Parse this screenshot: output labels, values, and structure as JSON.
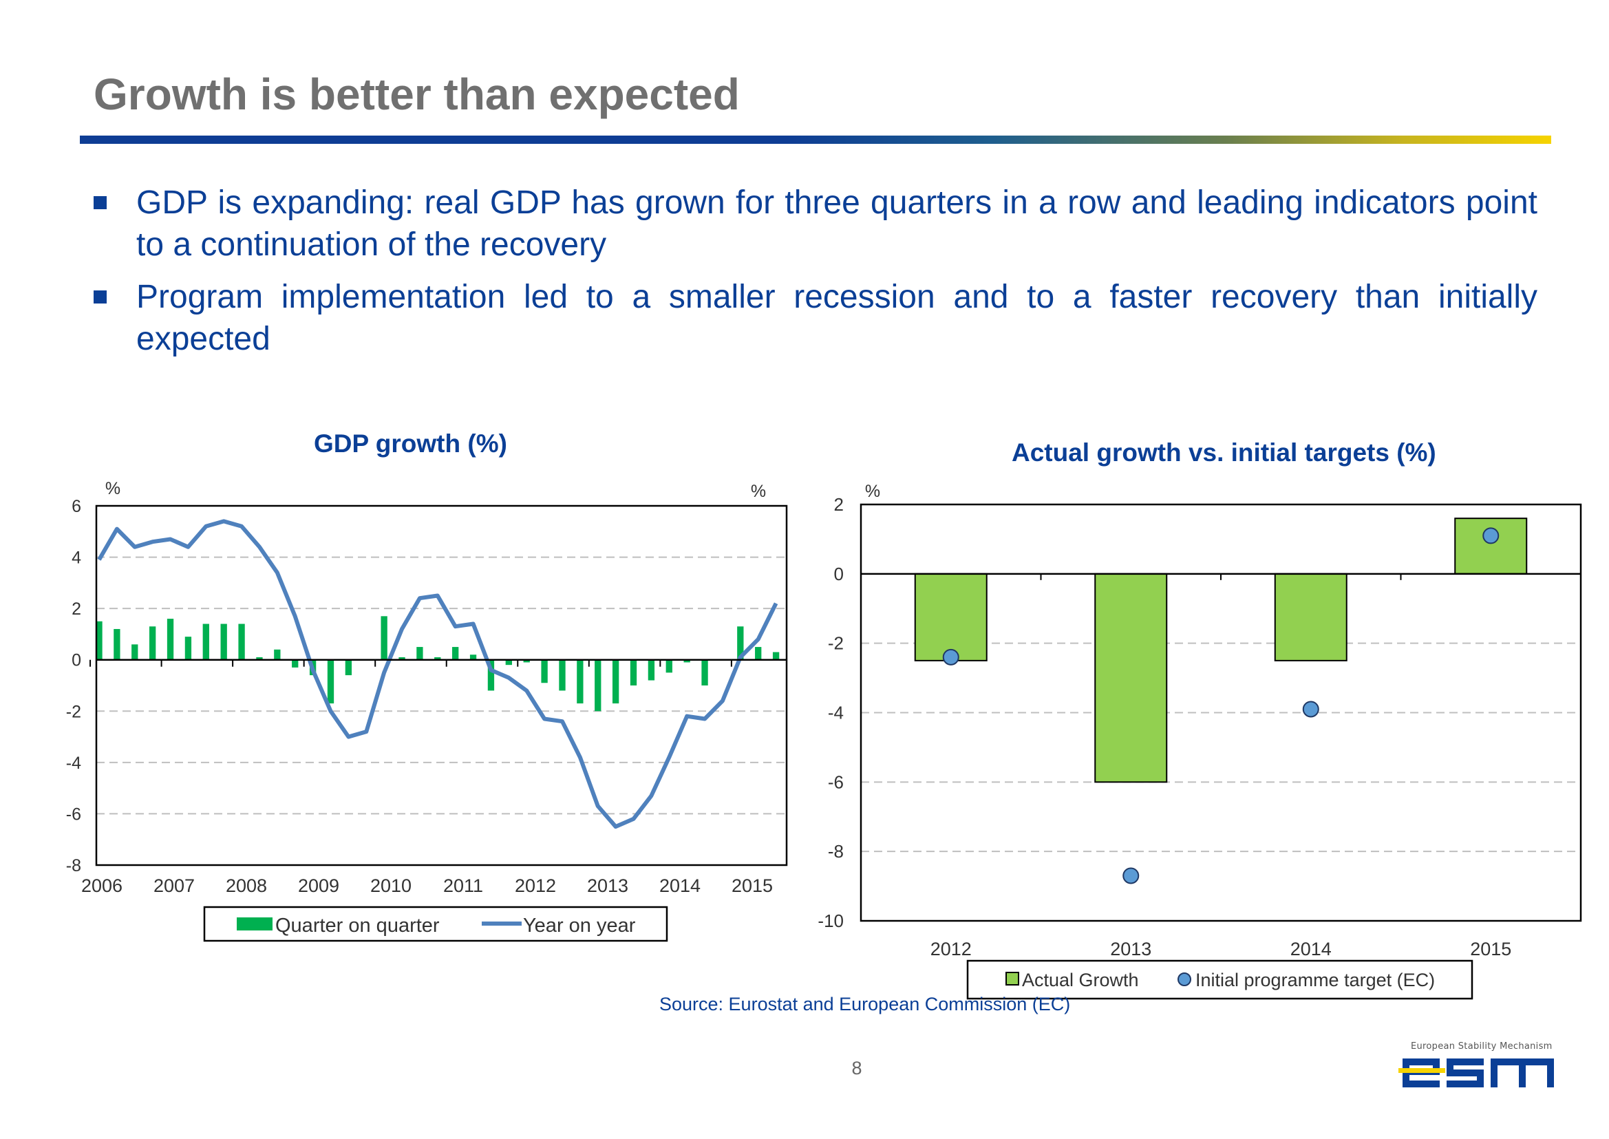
{
  "title": "Growth is better than expected",
  "bullets": [
    "GDP is expanding: real GDP has grown for three quarters in a row and leading indicators point to a continuation of the recovery",
    "Program implementation led to a smaller recession and to a faster recovery than initially expected"
  ],
  "source": "Source: Eurostat and European Commission (EC)",
  "page_number": "8",
  "logo": {
    "caption": "European Stability Mechanism",
    "wordmark": "esm"
  },
  "colors": {
    "navy": "#0b3f96",
    "green_bar": "#00b050",
    "blue_line": "#4f81bd",
    "lime_bar": "#92d050",
    "marker": "#5b9bd5"
  },
  "chart_data": [
    {
      "type": "bar+line",
      "title": "GDP growth (%)",
      "y_unit_left": "%",
      "y_unit_right": "%",
      "ylim": [
        -8,
        6
      ],
      "yticks": [
        "6",
        "4",
        "2",
        "0",
        "-2",
        "-4",
        "-6",
        "-8"
      ],
      "x_labels": [
        "2006",
        "2007",
        "2008",
        "2009",
        "2010",
        "2011",
        "2012",
        "2013",
        "2014",
        "2015"
      ],
      "grid": true,
      "legend_position": "bottom",
      "series": [
        {
          "name": "Quarter on quarter",
          "kind": "bar",
          "values": [
            1.5,
            1.2,
            0.6,
            1.3,
            1.6,
            0.9,
            1.4,
            1.4,
            1.4,
            0.1,
            0.4,
            -0.3,
            -0.6,
            -1.7,
            -0.6,
            0.0,
            1.7,
            0.1,
            0.5,
            0.1,
            0.5,
            0.2,
            -1.2,
            -0.2,
            -0.1,
            -0.9,
            -1.2,
            -1.7,
            -2.0,
            -1.7,
            -1.0,
            -0.8,
            -0.5,
            -0.1,
            -1.0,
            0.0,
            1.3,
            0.5,
            0.3
          ]
        },
        {
          "name": "Year on year",
          "kind": "line",
          "values": [
            3.9,
            5.1,
            4.4,
            4.6,
            4.7,
            4.4,
            5.2,
            5.4,
            5.2,
            4.4,
            3.4,
            1.7,
            -0.4,
            -2.0,
            -3.0,
            -2.8,
            -0.5,
            1.2,
            2.4,
            2.5,
            1.3,
            1.4,
            -0.4,
            -0.7,
            -1.2,
            -2.3,
            -2.4,
            -3.8,
            -5.7,
            -6.5,
            -6.2,
            -5.3,
            -3.8,
            -2.2,
            -2.3,
            -1.6,
            0.1,
            0.8,
            2.2
          ]
        }
      ]
    },
    {
      "type": "bar+scatter",
      "title": "Actual growth vs. initial targets (%)",
      "y_unit": "%",
      "ylim": [
        -10,
        2
      ],
      "yticks": [
        "2",
        "0",
        "-2",
        "-4",
        "-6",
        "-8",
        "-10"
      ],
      "categories": [
        "2012",
        "2013",
        "2014",
        "2015"
      ],
      "grid": true,
      "legend_position": "bottom",
      "series": [
        {
          "name": "Actual Growth",
          "kind": "bar",
          "values": [
            -2.5,
            -6.0,
            -2.5,
            1.6
          ]
        },
        {
          "name": "Initial programme target (EC)",
          "kind": "scatter",
          "values": [
            -2.4,
            -8.7,
            -3.9,
            1.1
          ]
        }
      ]
    }
  ]
}
